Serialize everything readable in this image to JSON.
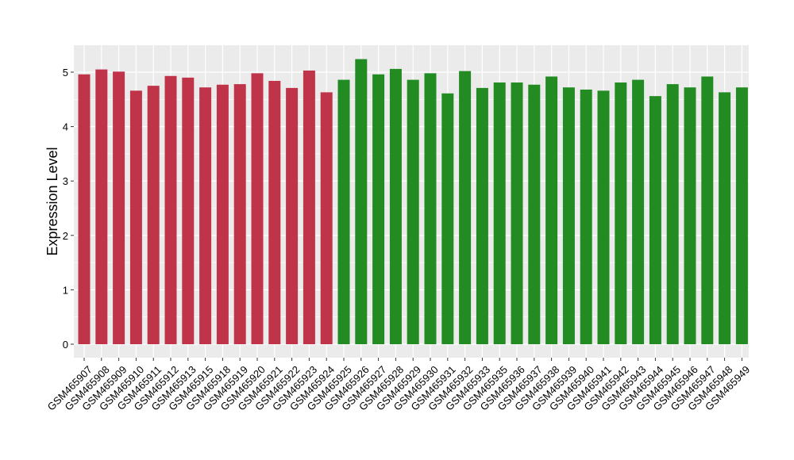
{
  "chart_data": {
    "type": "bar",
    "ylabel": "Expression Level",
    "xlabel": "",
    "title": "",
    "ylim": [
      0,
      5.5
    ],
    "yticks": [
      0,
      1,
      2,
      3,
      4,
      5
    ],
    "grid": true,
    "legend": "none",
    "categories": [
      "GSM465907",
      "GSM465908",
      "GSM465909",
      "GSM465910",
      "GSM465911",
      "GSM465912",
      "GSM465913",
      "GSM465915",
      "GSM465918",
      "GSM465919",
      "GSM465920",
      "GSM465921",
      "GSM465922",
      "GSM465923",
      "GSM465924",
      "GSM465925",
      "GSM465926",
      "GSM465927",
      "GSM465928",
      "GSM465929",
      "GSM465930",
      "GSM465931",
      "GSM465932",
      "GSM465933",
      "GSM465935",
      "GSM465936",
      "GSM465937",
      "GSM465938",
      "GSM465939",
      "GSM465940",
      "GSM465941",
      "GSM465942",
      "GSM465943",
      "GSM465944",
      "GSM465945",
      "GSM465946",
      "GSM465947",
      "GSM465948",
      "GSM465949"
    ],
    "values": [
      4.96,
      5.05,
      5.01,
      4.66,
      4.75,
      4.93,
      4.9,
      4.72,
      4.77,
      4.78,
      4.98,
      4.84,
      4.71,
      5.03,
      4.63,
      4.86,
      5.24,
      4.96,
      5.06,
      4.86,
      4.98,
      4.61,
      5.02,
      4.71,
      4.81,
      4.81,
      4.77,
      4.92,
      4.72,
      4.68,
      4.66,
      4.81,
      4.86,
      4.56,
      4.78,
      4.72,
      4.92,
      4.63,
      4.72
    ],
    "groups": [
      "A",
      "A",
      "A",
      "A",
      "A",
      "A",
      "A",
      "A",
      "A",
      "A",
      "A",
      "A",
      "A",
      "A",
      "A",
      "B",
      "B",
      "B",
      "B",
      "B",
      "B",
      "B",
      "B",
      "B",
      "B",
      "B",
      "B",
      "B",
      "B",
      "B",
      "B",
      "B",
      "B",
      "B",
      "B",
      "B",
      "B",
      "B",
      "B"
    ],
    "colors": {
      "A": "#c0344a",
      "B": "#228b22"
    },
    "panel_background": "#ebebeb",
    "grid_color": "#ffffff"
  }
}
